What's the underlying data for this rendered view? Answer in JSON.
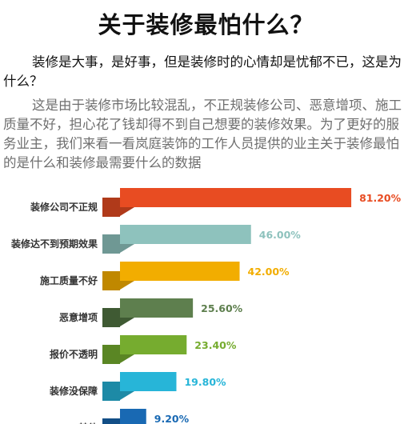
{
  "header": {
    "title": "关于装修最怕什么？"
  },
  "intro": {
    "para1": "装修是大事，是好事，但是装修时的心情却是忧郁不已，这是为什么？",
    "para2": "这是由于装修市场比较混乱，不正规装修公司、恶意增项、施工质量不好，担心花了钱却得不到自己想要的装修效果。为了更好的服务业主，我们来看一看岚庭装饰的工作人员提供的业主关于装修最怕的是什么和装修最需要什么的数据"
  },
  "chart_data": {
    "type": "bar",
    "orientation": "horizontal",
    "title": "",
    "xlabel": "",
    "ylabel": "",
    "xlim": [
      0,
      100
    ],
    "categories": [
      "装修公司不正规",
      "装修达不到预期效果",
      "施工质量不好",
      "恶意增项",
      "报价不透明",
      "装修没保障",
      "其他"
    ],
    "values": [
      81.2,
      46.0,
      42.0,
      25.6,
      23.4,
      19.8,
      9.2
    ],
    "value_labels": [
      "81.20%",
      "46.00%",
      "42.00%",
      "25.60%",
      "23.40%",
      "19.80%",
      "9.20%"
    ],
    "colors": [
      "#e84c22",
      "#8ec2bd",
      "#f2ad00",
      "#5e7f4e",
      "#76ac2f",
      "#27b5d8",
      "#1969b3"
    ],
    "shadow_colors": [
      "#b03a1a",
      "#6f9894",
      "#c08800",
      "#3f5a33",
      "#5a8624",
      "#1d8aa6",
      "#124e86"
    ],
    "grid": false,
    "legend": "none"
  }
}
